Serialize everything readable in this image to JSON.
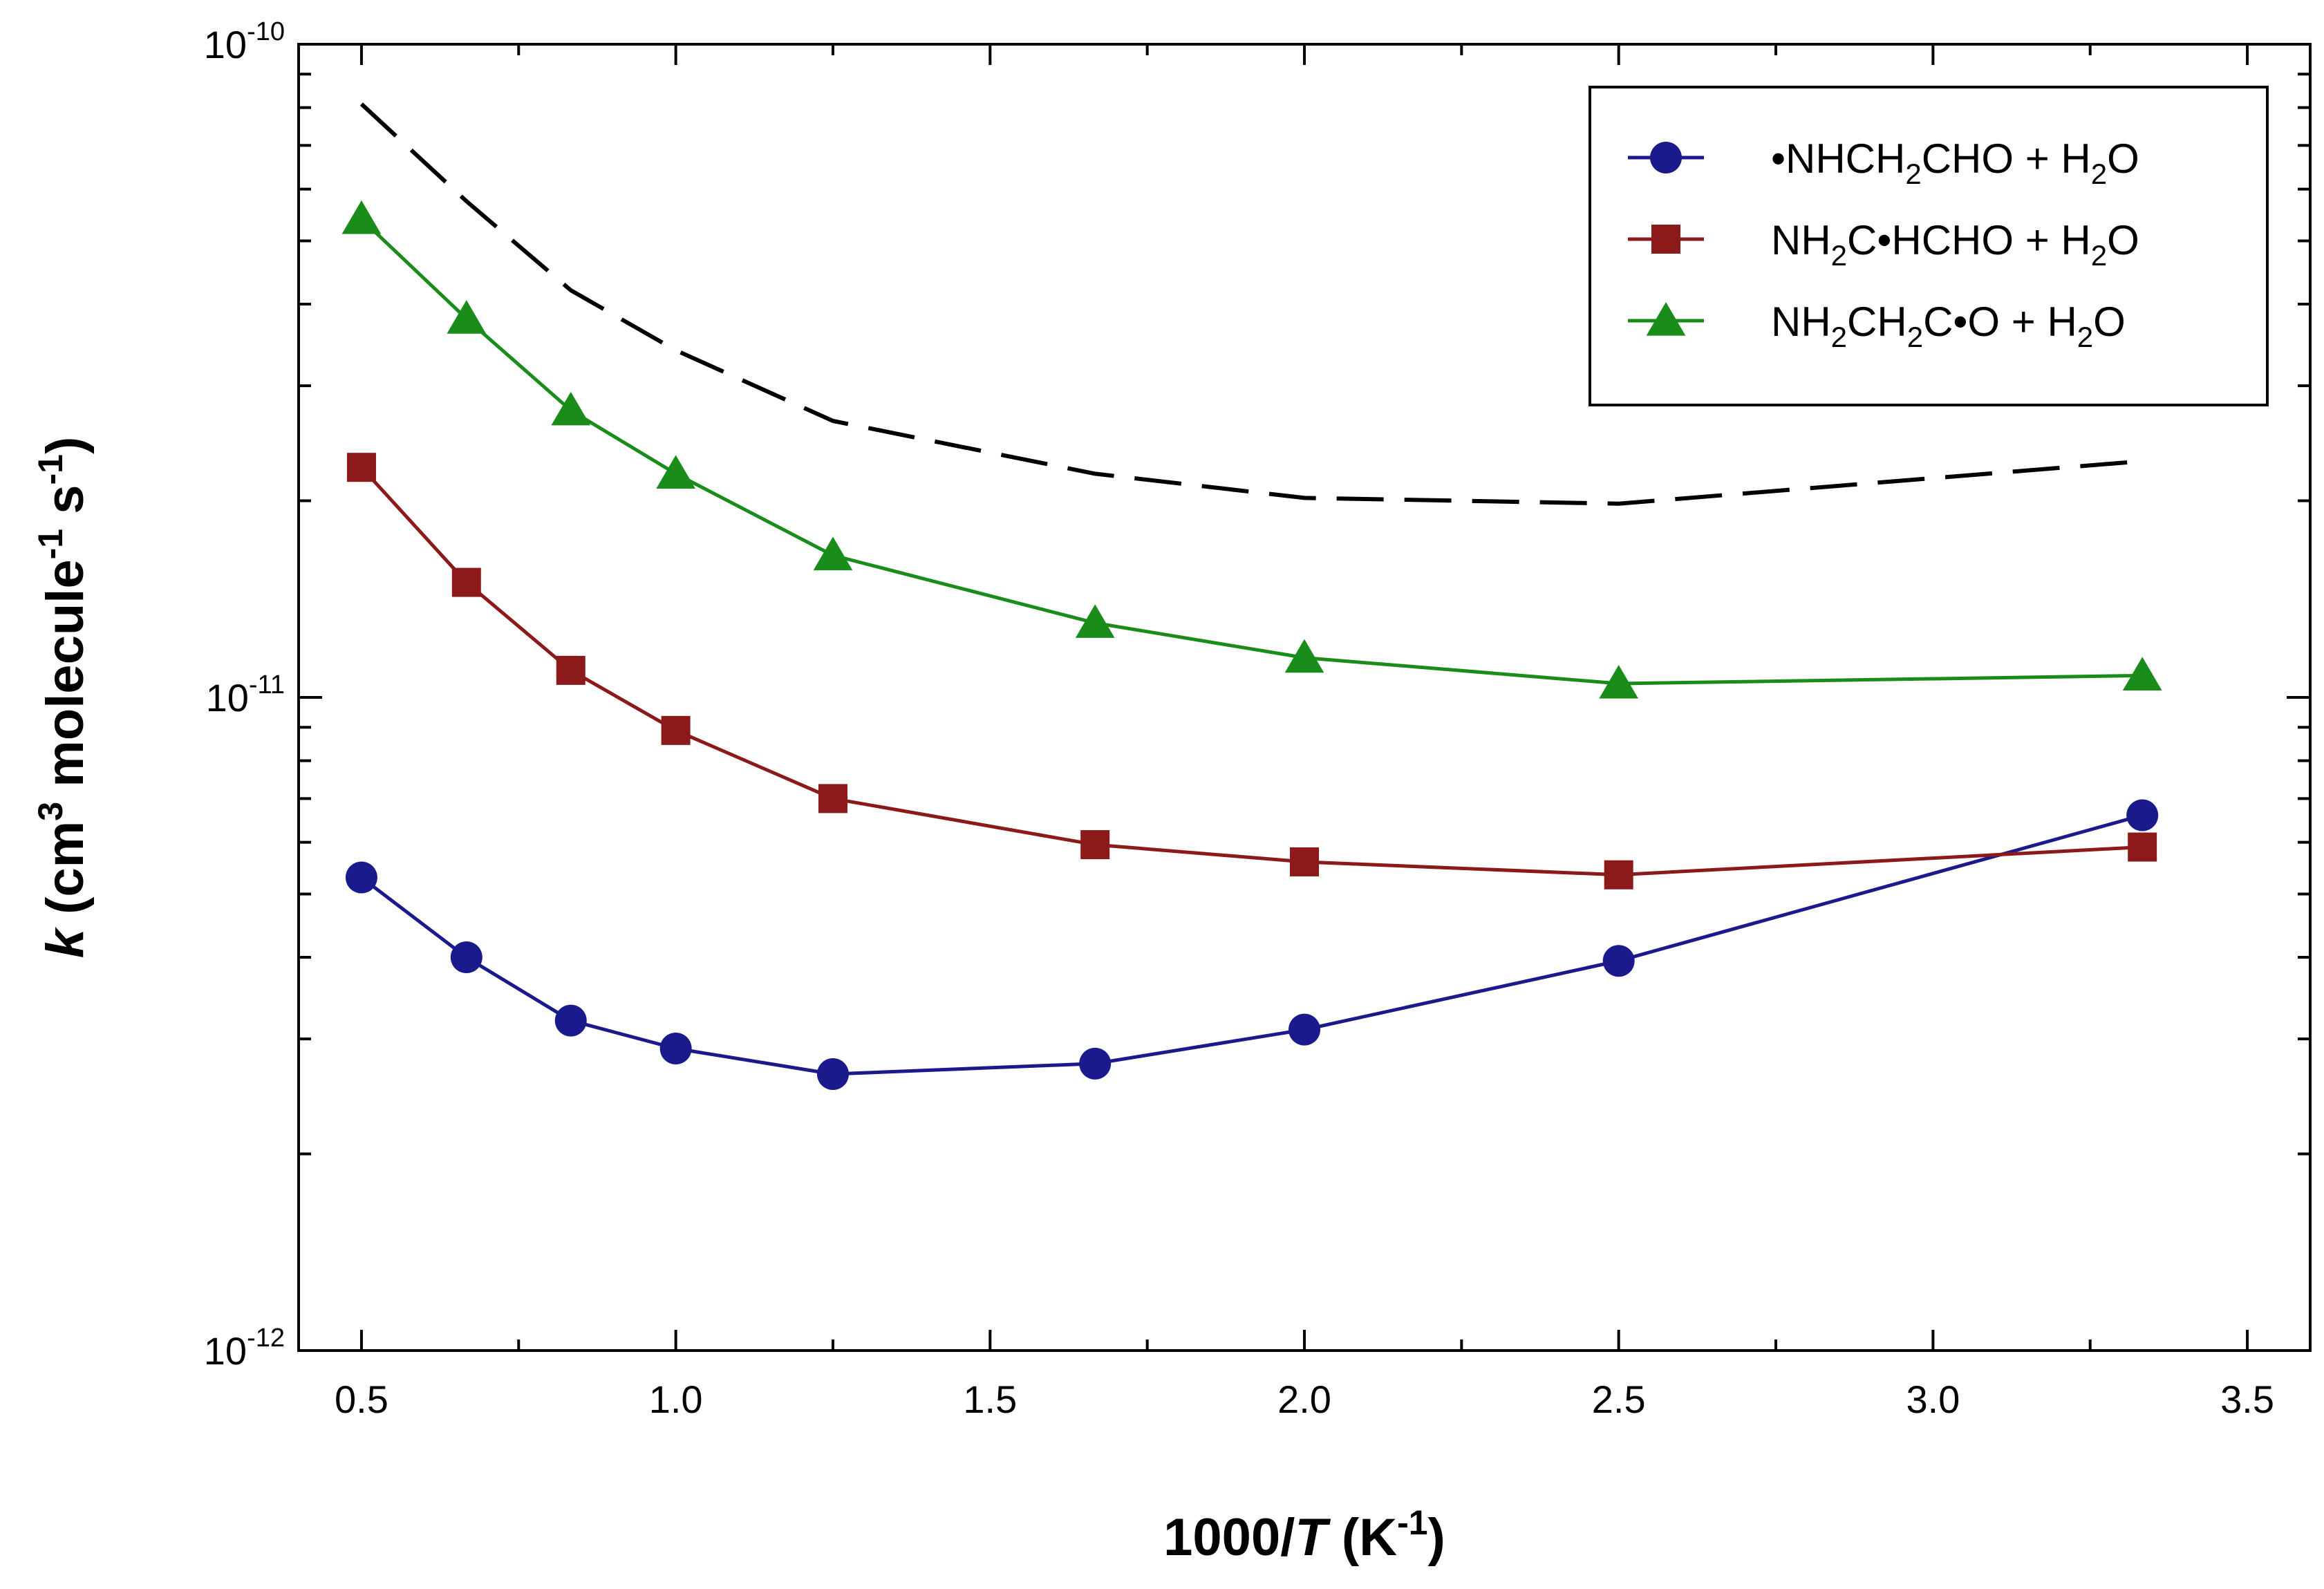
{
  "chart_data": {
    "type": "line",
    "xlabel": {
      "pre": "1000/",
      "var": "T",
      "mid": " (K",
      "sup": "-1",
      "post": ")"
    },
    "ylabel": {
      "var": "k",
      "a": " (cm",
      "sup1": "3",
      "b": " molecule",
      "sup2": "-1",
      "c": " s",
      "sup3": "-1",
      "d": ")"
    },
    "xlim": [
      0.4,
      3.6
    ],
    "ylim": [
      1e-12,
      1e-10
    ],
    "yscale": "log",
    "grid": false,
    "legend_position": "top-right",
    "x_ticks": [
      {
        "value": 0.5,
        "label": "0.5"
      },
      {
        "value": 1.0,
        "label": "1.0"
      },
      {
        "value": 1.5,
        "label": "1.5"
      },
      {
        "value": 2.0,
        "label": "2.0"
      },
      {
        "value": 2.5,
        "label": "2.5"
      },
      {
        "value": 3.0,
        "label": "3.0"
      },
      {
        "value": 3.5,
        "label": "3.5"
      }
    ],
    "y_ticks": [
      {
        "value": 1e-10,
        "base": "10",
        "exp": "-10"
      },
      {
        "value": 1e-11,
        "base": "10",
        "exp": "-11"
      },
      {
        "value": 1e-12,
        "base": "10",
        "exp": "-12"
      }
    ],
    "series": [
      {
        "name": "•NHCH2CHO + H2O",
        "legend_parts": [
          [
            "•NHCH",
            ""
          ],
          [
            "2",
            "sub"
          ],
          [
            "CHO + H",
            ""
          ],
          [
            "2",
            "sub"
          ],
          [
            "O",
            ""
          ]
        ],
        "color": "#1a1a8c",
        "marker": "circle",
        "x": [
          0.5,
          0.667,
          0.833,
          1.0,
          1.25,
          1.667,
          2.0,
          2.5,
          3.333
        ],
        "values": [
          5.3e-12,
          4e-12,
          3.2e-12,
          2.9e-12,
          2.65e-12,
          2.75e-12,
          3.1e-12,
          3.95e-12,
          6.6e-12
        ]
      },
      {
        "name": "NH2C•HCHO + H2O",
        "legend_parts": [
          [
            "NH",
            ""
          ],
          [
            "2",
            "sub"
          ],
          [
            "C•HCHO + H",
            ""
          ],
          [
            "2",
            "sub"
          ],
          [
            "O",
            ""
          ]
        ],
        "color": "#8c1a1a",
        "marker": "square",
        "x": [
          0.5,
          0.667,
          0.833,
          1.0,
          1.25,
          1.667,
          2.0,
          2.5,
          3.333
        ],
        "values": [
          2.25e-11,
          1.5e-11,
          1.1e-11,
          8.9e-12,
          7e-12,
          5.95e-12,
          5.6e-12,
          5.35e-12,
          5.9e-12
        ]
      },
      {
        "name": "NH2CH2C•O + H2O",
        "legend_parts": [
          [
            "NH",
            ""
          ],
          [
            "2",
            "sub"
          ],
          [
            "CH",
            ""
          ],
          [
            "2",
            "sub"
          ],
          [
            "C•O + H",
            ""
          ],
          [
            "2",
            "sub"
          ],
          [
            "O",
            ""
          ]
        ],
        "color": "#1a8c1a",
        "marker": "triangle",
        "x": [
          0.5,
          0.667,
          0.833,
          1.0,
          1.25,
          1.667,
          2.0,
          2.5,
          3.333
        ],
        "values": [
          5.4e-11,
          3.8e-11,
          2.75e-11,
          2.2e-11,
          1.65e-11,
          1.3e-11,
          1.15e-11,
          1.05e-11,
          1.08e-11
        ]
      },
      {
        "name": "total",
        "in_legend": false,
        "color": "#000000",
        "style": "dashed",
        "x": [
          0.5,
          0.667,
          0.833,
          1.0,
          1.25,
          1.667,
          2.0,
          2.5,
          3.333
        ],
        "values": [
          8.1e-11,
          5.75e-11,
          4.2e-11,
          3.4e-11,
          2.65e-11,
          2.2e-11,
          2.02e-11,
          1.98e-11,
          2.3e-11
        ]
      }
    ]
  }
}
